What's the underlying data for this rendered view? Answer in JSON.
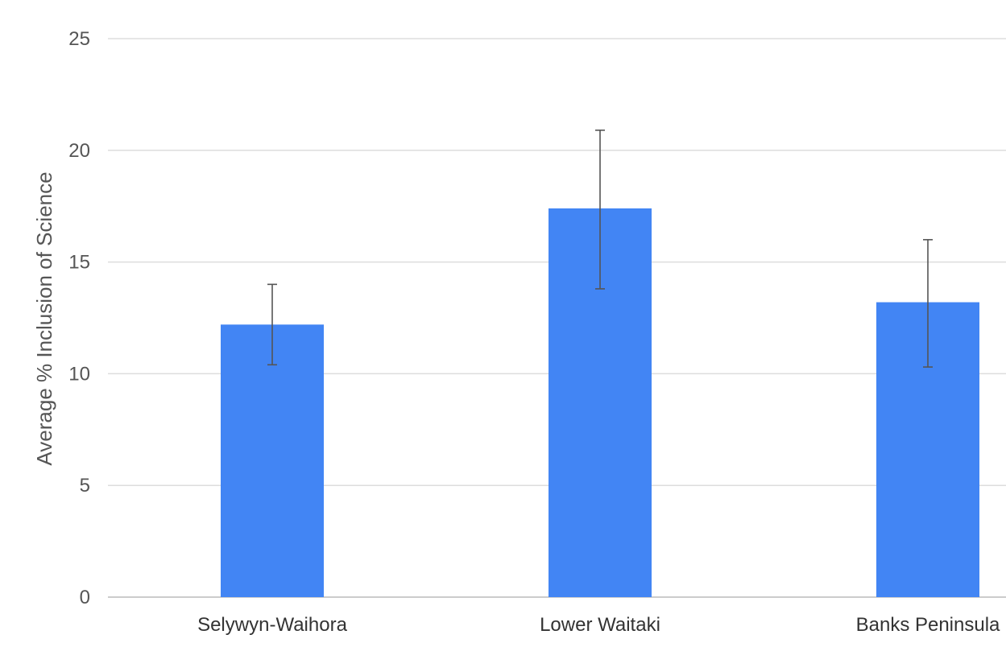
{
  "chart_data": {
    "type": "bar",
    "categories": [
      "Selywyn-Waihora",
      "Lower Waitaki",
      "Banks Peninsula"
    ],
    "series": [
      {
        "values": [
          12.2,
          17.4,
          13.2
        ],
        "error_low": [
          10.4,
          13.8,
          10.3
        ],
        "error_high": [
          14.0,
          20.9,
          16.0
        ],
        "color": "#4285f4"
      }
    ],
    "ylabel": "Average % Inclusion of Science",
    "xlabel": "",
    "title": "",
    "ylim": [
      0,
      25
    ],
    "yticks": [
      0,
      5,
      10,
      15,
      20,
      25
    ],
    "grid": true,
    "legend": "none"
  }
}
